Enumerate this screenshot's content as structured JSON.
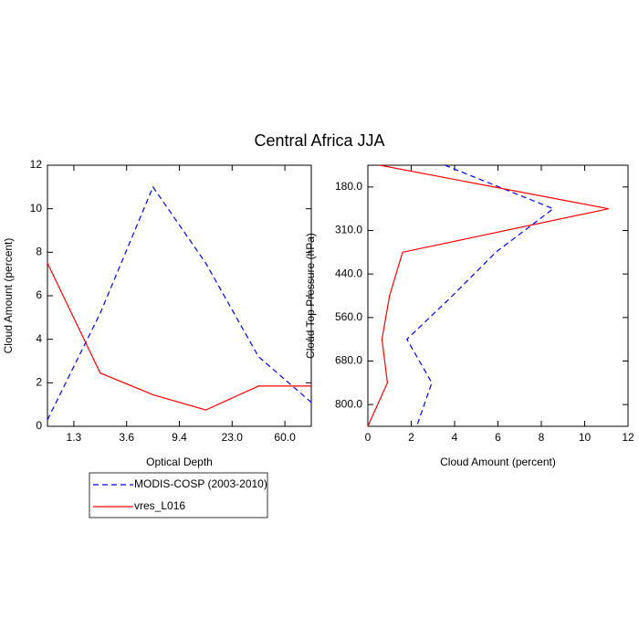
{
  "chart_data": [
    {
      "type": "line",
      "title": "Central Africa JJA",
      "x_label": "Optical Depth",
      "y_label": "Cloud Amount (percent)",
      "x": [
        0,
        1,
        2,
        3,
        4,
        5
      ],
      "xlim": [
        0,
        5
      ],
      "xticks": [
        {
          "value": 0.5,
          "label": "1.3"
        },
        {
          "value": 1.5,
          "label": "3.6"
        },
        {
          "value": 2.5,
          "label": "9.4"
        },
        {
          "value": 3.5,
          "label": "23.0"
        },
        {
          "value": 4.5,
          "label": "60.0"
        }
      ],
      "ylim": [
        0,
        12
      ],
      "yticks": [
        0,
        2,
        4,
        6,
        8,
        10,
        12
      ],
      "series": [
        {
          "name": "MODIS-COSP (2003-2010)",
          "color": "#0000ff",
          "dash": true,
          "values": [
            0.3,
            5.2,
            11.0,
            7.5,
            3.2,
            1.1
          ]
        },
        {
          "name": "vres_L016",
          "color": "#ff0000",
          "dash": false,
          "values": [
            7.5,
            2.45,
            1.45,
            0.75,
            1.85,
            1.85
          ]
        }
      ]
    },
    {
      "type": "line",
      "orientation": "horizontal",
      "x_label": "Cloud Amount (percent)",
      "y_label": "Cloud Top Pressure (hPa)",
      "y": [
        0,
        1,
        2,
        3,
        4,
        5,
        6
      ],
      "ylim": [
        6,
        0
      ],
      "yticks": [
        {
          "value": 0.5,
          "label": "180.0"
        },
        {
          "value": 1.5,
          "label": "310.0"
        },
        {
          "value": 2.5,
          "label": "440.0"
        },
        {
          "value": 3.5,
          "label": "560.0"
        },
        {
          "value": 4.5,
          "label": "680.0"
        },
        {
          "value": 5.5,
          "label": "800.0"
        }
      ],
      "xlim": [
        0,
        12
      ],
      "xticks": [
        0,
        2,
        4,
        6,
        8,
        10,
        12
      ],
      "series": [
        {
          "color": "#0000ff",
          "dash": true,
          "values": [
            3.55,
            8.55,
            5.9,
            3.9,
            1.8,
            2.95,
            2.25
          ]
        },
        {
          "color": "#ff0000",
          "dash": false,
          "values": [
            0.55,
            11.1,
            1.6,
            1.0,
            0.65,
            0.9,
            0.0
          ]
        }
      ]
    }
  ]
}
